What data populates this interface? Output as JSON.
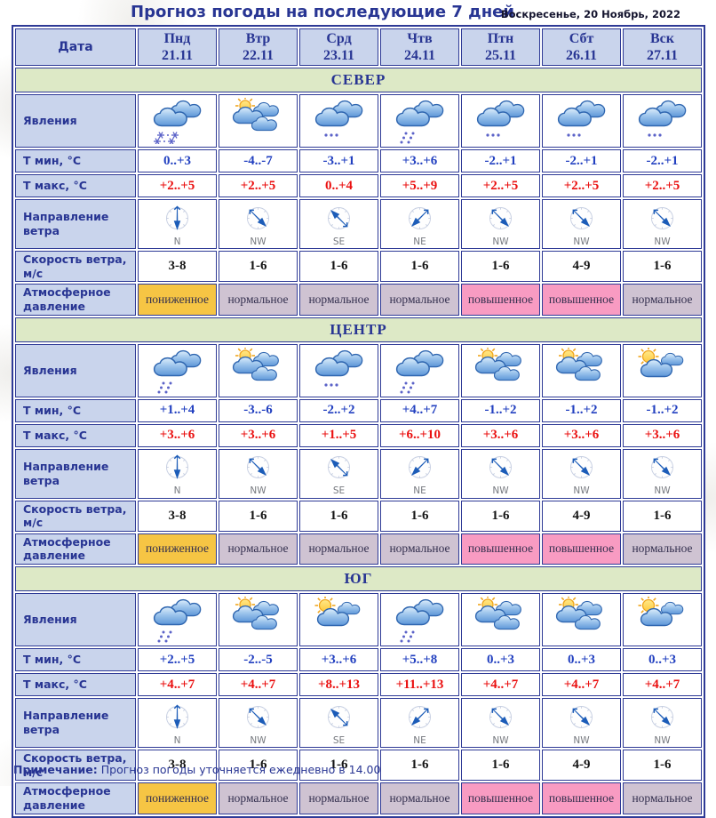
{
  "page": {
    "title": "Прогноз погоды на последующие 7 дней",
    "date": "Воскресенье, 20 Ноябрь, 2022",
    "note_label": "Примечание:",
    "note_text": " Прогноз погоды уточняется ежедневно в 14.00"
  },
  "table": {
    "date_label": "Дата",
    "day_headers": [
      {
        "day": "Пнд",
        "date": "21.11"
      },
      {
        "day": "Втр",
        "date": "22.11"
      },
      {
        "day": "Срд",
        "date": "23.11"
      },
      {
        "day": "Чтв",
        "date": "24.11"
      },
      {
        "day": "Птн",
        "date": "25.11"
      },
      {
        "day": "Сбт",
        "date": "26.11"
      },
      {
        "day": "Вск",
        "date": "27.11"
      }
    ],
    "row_labels": {
      "phenomena": "Явления",
      "tmin": "Т мин, °С",
      "tmax": "Т макс, °С",
      "wind_dir": "Направление ветра",
      "wind_speed": "Скорость ветра, м/с",
      "pressure": "Атмосферное давление"
    },
    "pressure_colors": {
      "пониженное": "#f6c544",
      "нормальное": "#cfc3d2",
      "повышенное": "#f89bc2"
    },
    "wind_angles": {
      "N": 180,
      "NW": 135,
      "SE": 315,
      "NE": 225
    },
    "sections": [
      {
        "name": "СЕВЕР",
        "phenomena": [
          "snow-clouds",
          "sun-clouds",
          "clouds-drizzle",
          "rain-clouds",
          "clouds-drizzle",
          "clouds-drizzle",
          "clouds-drizzle"
        ],
        "tmin": [
          "0..+3",
          "-4..-7",
          "-3..+1",
          "+3..+6",
          "-2..+1",
          "-2..+1",
          "-2..+1"
        ],
        "tmax": [
          "+2..+5",
          "+2..+5",
          "0..+4",
          "+5..+9",
          "+2..+5",
          "+2..+5",
          "+2..+5"
        ],
        "wind_dir": [
          "N",
          "NW",
          "SE",
          "NE",
          "NW",
          "NW",
          "NW"
        ],
        "wind_speed": [
          "3-8",
          "1-6",
          "1-6",
          "1-6",
          "1-6",
          "4-9",
          "1-6"
        ],
        "pressure": [
          "пониженное",
          "нормальное",
          "нормальное",
          "нормальное",
          "повышенное",
          "повышенное",
          "нормальное"
        ]
      },
      {
        "name": "ЦЕНТР",
        "phenomena": [
          "rain-clouds",
          "sun-clouds",
          "clouds-drizzle",
          "rain-clouds",
          "sun-clouds",
          "sun-clouds",
          "sun-cloud"
        ],
        "tmin": [
          "+1..+4",
          "-3..-6",
          "-2..+2",
          "+4..+7",
          "-1..+2",
          "-1..+2",
          "-1..+2"
        ],
        "tmax": [
          "+3..+6",
          "+3..+6",
          "+1..+5",
          "+6..+10",
          "+3..+6",
          "+3..+6",
          "+3..+6"
        ],
        "wind_dir": [
          "N",
          "NW",
          "SE",
          "NE",
          "NW",
          "NW",
          "NW"
        ],
        "wind_speed": [
          "3-8",
          "1-6",
          "1-6",
          "1-6",
          "1-6",
          "4-9",
          "1-6"
        ],
        "pressure": [
          "пониженное",
          "нормальное",
          "нормальное",
          "нормальное",
          "повышенное",
          "повышенное",
          "нормальное"
        ]
      },
      {
        "name": "ЮГ",
        "phenomena": [
          "rain-clouds",
          "sun-clouds",
          "sun-cloud",
          "rain-clouds",
          "sun-clouds",
          "sun-clouds",
          "sun-cloud"
        ],
        "tmin": [
          "+2..+5",
          "-2..-5",
          "+3..+6",
          "+5..+8",
          "0..+3",
          "0..+3",
          "0..+3"
        ],
        "tmax": [
          "+4..+7",
          "+4..+7",
          "+8..+13",
          "+11..+13",
          "+4..+7",
          "+4..+7",
          "+4..+7"
        ],
        "wind_dir": [
          "N",
          "NW",
          "SE",
          "NE",
          "NW",
          "NW",
          "NW"
        ],
        "wind_speed": [
          "3-8",
          "1-6",
          "1-6",
          "1-6",
          "1-6",
          "4-9",
          "1-6"
        ],
        "pressure": [
          "пониженное",
          "нормальное",
          "нормальное",
          "нормальное",
          "повышенное",
          "повышенное",
          "нормальное"
        ]
      }
    ]
  }
}
